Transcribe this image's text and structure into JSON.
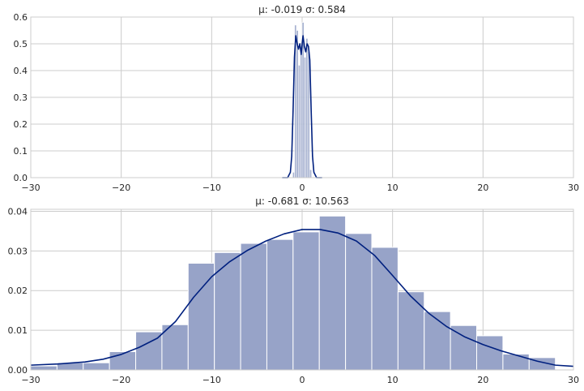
{
  "chart_data": [
    {
      "type": "bar",
      "title": "μ: -0.019  σ: 0.584",
      "xlabel": "",
      "ylabel": "",
      "xlim": [
        -30,
        30
      ],
      "ylim": [
        0,
        0.6
      ],
      "grid": true,
      "xticks": [
        "−30",
        "−20",
        "−10",
        "0",
        "10",
        "20",
        "30"
      ],
      "xtick_values": [
        -30,
        -20,
        -10,
        0,
        10,
        20,
        30
      ],
      "yticks": [
        "0.0",
        "0.1",
        "0.2",
        "0.3",
        "0.4",
        "0.5",
        "0.6"
      ],
      "ytick_values": [
        0,
        0.1,
        0.2,
        0.3,
        0.4,
        0.5,
        0.6
      ],
      "histogram": {
        "bin_edges": [
          -1.05,
          -0.84,
          -0.63,
          -0.42,
          -0.21,
          0.0,
          0.21,
          0.42,
          0.63,
          0.84,
          1.05
        ],
        "densities": [
          0.02,
          0.57,
          0.55,
          0.42,
          0.48,
          0.58,
          0.45,
          0.52,
          0.47,
          0.03
        ],
        "color": "#97a3c8"
      },
      "kde": {
        "x": [
          -2.2,
          -1.6,
          -1.3,
          -1.15,
          -1.0,
          -0.85,
          -0.7,
          -0.55,
          -0.4,
          -0.25,
          -0.1,
          0.0,
          0.1,
          0.25,
          0.4,
          0.55,
          0.7,
          0.85,
          1.0,
          1.15,
          1.3,
          1.6,
          2.2
        ],
        "y": [
          0,
          0.0,
          0.02,
          0.08,
          0.25,
          0.45,
          0.53,
          0.5,
          0.48,
          0.5,
          0.46,
          0.5,
          0.53,
          0.49,
          0.47,
          0.5,
          0.49,
          0.44,
          0.25,
          0.08,
          0.02,
          0.0,
          0
        ],
        "color": "#00207f"
      }
    },
    {
      "type": "bar",
      "title": "μ: -0.681  σ: 10.563",
      "xlabel": "",
      "ylabel": "",
      "xlim": [
        -30,
        30
      ],
      "ylim": [
        0,
        0.0405
      ],
      "grid": true,
      "xticks": [
        "−30",
        "−20",
        "−10",
        "0",
        "10",
        "20",
        "30"
      ],
      "xtick_values": [
        -30,
        -20,
        -10,
        0,
        10,
        20,
        30
      ],
      "yticks": [
        "0.00",
        "0.01",
        "0.02",
        "0.03",
        "0.04"
      ],
      "ytick_values": [
        0,
        0.01,
        0.02,
        0.03,
        0.04
      ],
      "histogram": {
        "bin_edges": [
          -30.0,
          -27.1,
          -24.2,
          -21.3,
          -18.4,
          -15.5,
          -12.6,
          -9.7,
          -6.8,
          -3.9,
          -1.0,
          1.9,
          4.8,
          7.7,
          10.6,
          13.5,
          16.4,
          19.3,
          22.2,
          25.1,
          28.0
        ],
        "densities": [
          0.001,
          0.0018,
          0.0018,
          0.0046,
          0.0096,
          0.0114,
          0.0269,
          0.0296,
          0.0319,
          0.0329,
          0.0348,
          0.0388,
          0.0344,
          0.0309,
          0.0197,
          0.0147,
          0.0112,
          0.0086,
          0.004,
          0.0031
        ],
        "color": "#97a3c8"
      },
      "kde": {
        "x": [
          -30,
          -27,
          -24,
          -22,
          -20,
          -18,
          -16,
          -14,
          -12,
          -10,
          -8,
          -6,
          -4,
          -2,
          0,
          2,
          4,
          6,
          8,
          10,
          12,
          14,
          16,
          18,
          20,
          22,
          24,
          26,
          28,
          30
        ],
        "y": [
          0.0012,
          0.0015,
          0.002,
          0.0027,
          0.0039,
          0.0057,
          0.008,
          0.0122,
          0.0183,
          0.0235,
          0.0273,
          0.0302,
          0.0325,
          0.0343,
          0.0354,
          0.0354,
          0.0345,
          0.0325,
          0.0289,
          0.0238,
          0.0186,
          0.0143,
          0.0109,
          0.0083,
          0.0064,
          0.0048,
          0.0035,
          0.0022,
          0.0012,
          0.0009
        ],
        "color": "#00207f"
      }
    }
  ]
}
